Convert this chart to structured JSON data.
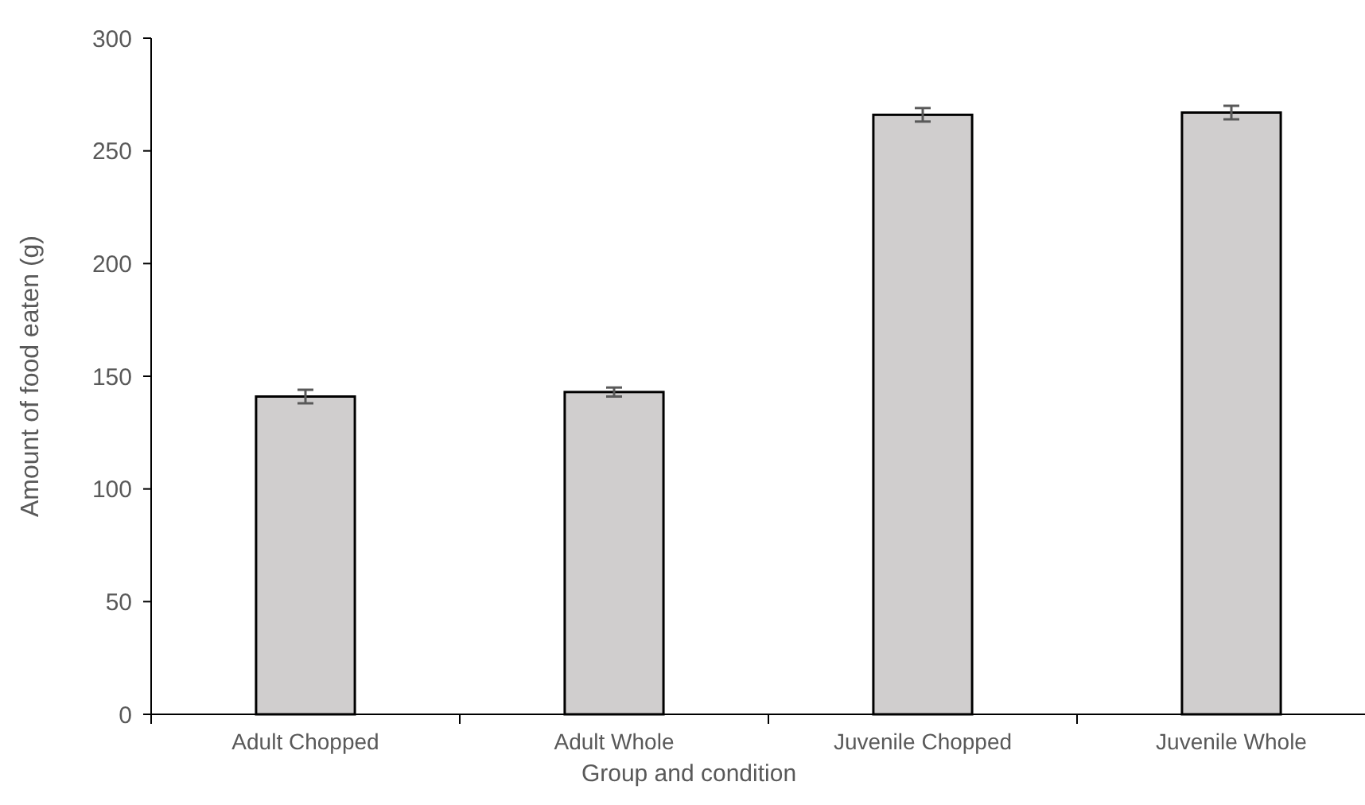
{
  "chart_data": {
    "type": "bar",
    "xlabel": "Group and condition",
    "ylabel": "Amount of food eaten (g)",
    "categories": [
      "Adult Chopped",
      "Adult Whole",
      "Juvenile Chopped",
      "Juvenile Whole"
    ],
    "values": [
      141,
      143,
      266,
      267
    ],
    "errors": [
      3,
      2,
      3,
      3
    ],
    "color": "#d0cece",
    "ylim": [
      0,
      300
    ],
    "yticks": [
      0,
      50,
      100,
      150,
      200,
      250,
      300
    ],
    "grid": false
  }
}
